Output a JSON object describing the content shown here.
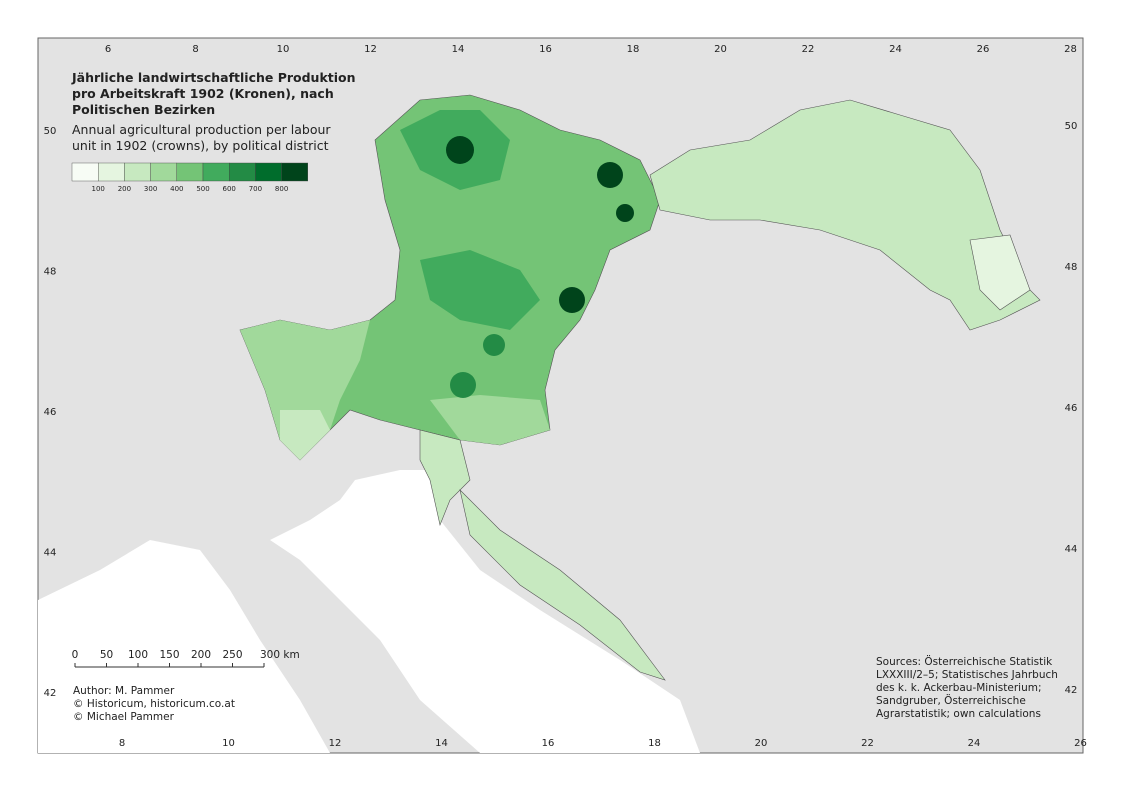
{
  "title_lines": [
    "Jährliche landwirtschaftliche Produktion",
    "pro Arbeitskraft 1902 (Kronen), nach",
    "Politischen Bezirken"
  ],
  "subtitle_lines": [
    "Annual agricultural production per labour",
    "unit in 1902 (crowns), by political district"
  ],
  "legend": {
    "colors": [
      "#f7fcf5",
      "#e5f5e0",
      "#c7e9c0",
      "#a1d99b",
      "#74c476",
      "#41ab5d",
      "#238b45",
      "#006d2c",
      "#00441b"
    ],
    "labels": [
      100,
      200,
      300,
      400,
      500,
      600,
      700,
      800
    ]
  },
  "scale_bar": {
    "labels": [
      "0",
      "50",
      "100",
      "150",
      "200",
      "250",
      "300 km"
    ]
  },
  "credits": [
    "Author: M. Pammer",
    "© Historicum, historicum.co.at",
    "© Michael Pammer"
  ],
  "sources": [
    "Sources: Österreichische Statistik",
    "LXXXIII/2–5; Statistisches Jahrbuch",
    "des k. k. Ackerbau-Ministerium;",
    "Sandgruber, Österreichische",
    "Agrarstatistik; own calculations"
  ],
  "graticule": {
    "top": [
      6,
      8,
      10,
      12,
      14,
      16,
      18,
      20,
      22,
      24,
      26,
      28
    ],
    "bottom": [
      8,
      10,
      12,
      14,
      16,
      18,
      20,
      22,
      24,
      26
    ],
    "left": [
      50,
      48,
      46,
      44,
      42
    ],
    "right": [
      50,
      48,
      46,
      44,
      42
    ]
  }
}
